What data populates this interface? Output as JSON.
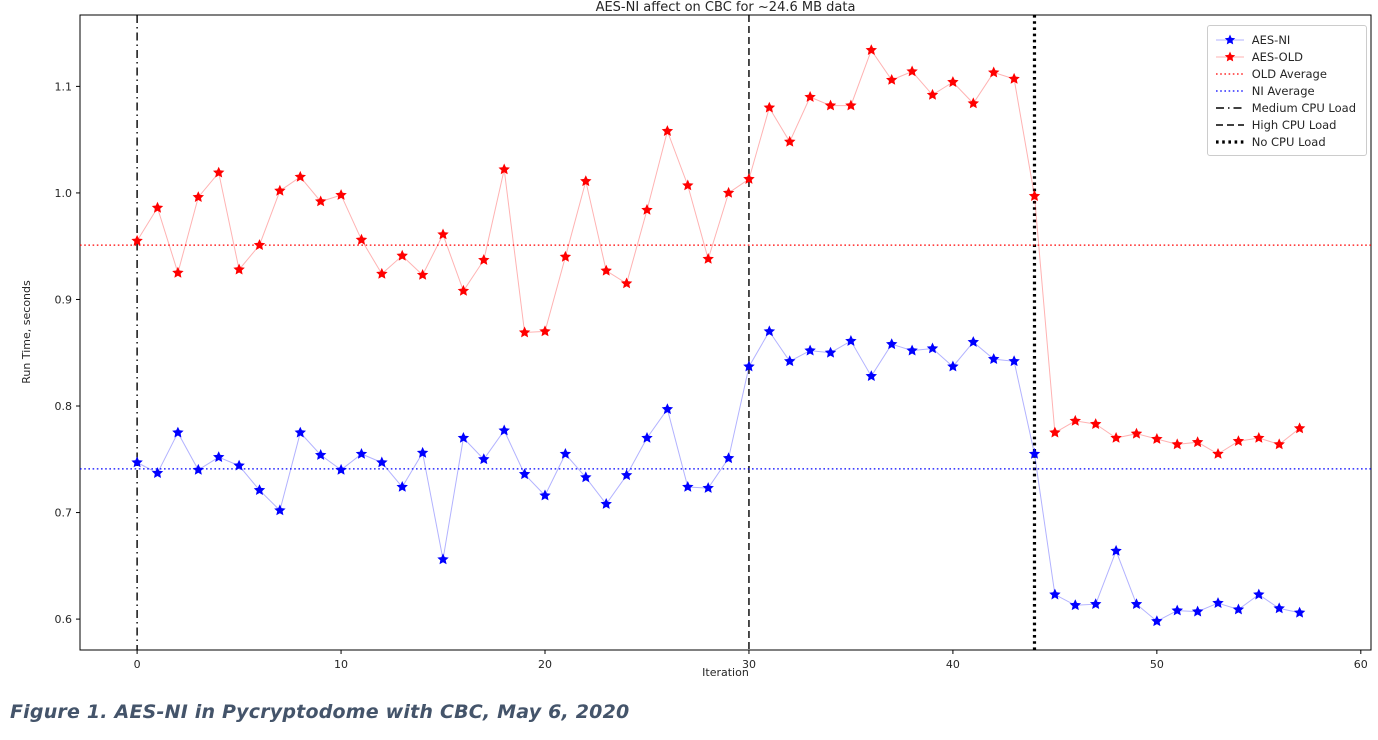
{
  "caption": "Figure 1. AES-NI in Pycryptodome with CBC, May 6, 2020",
  "chart_data": {
    "type": "line",
    "title": "AES-NI affect on CBC for ~24.6 MB data",
    "xlabel": "Iteration",
    "ylabel": "Run Time, seconds",
    "grid": false,
    "legend_position": "upper right",
    "xlim": [
      -2.8,
      60.5
    ],
    "ylim": [
      0.571,
      1.167
    ],
    "x_ticks": [
      0,
      10,
      20,
      30,
      40,
      50,
      60
    ],
    "y_ticks": [
      0.6,
      0.7,
      0.8,
      0.9,
      1.0,
      1.1
    ],
    "x": [
      0,
      1,
      2,
      3,
      4,
      5,
      6,
      7,
      8,
      9,
      10,
      11,
      12,
      13,
      14,
      15,
      16,
      17,
      18,
      19,
      20,
      21,
      22,
      23,
      24,
      25,
      26,
      27,
      28,
      29,
      30,
      31,
      32,
      33,
      34,
      35,
      36,
      37,
      38,
      39,
      40,
      41,
      42,
      43,
      44,
      45,
      46,
      47,
      48,
      49,
      50,
      51,
      52,
      53,
      54,
      55,
      56,
      57
    ],
    "series": [
      {
        "name": "AES-NI",
        "color": "#0000ff",
        "marker": "star",
        "values": [
          0.747,
          0.737,
          0.775,
          0.74,
          0.752,
          0.744,
          0.721,
          0.702,
          0.775,
          0.754,
          0.74,
          0.755,
          0.747,
          0.724,
          0.756,
          0.656,
          0.77,
          0.75,
          0.777,
          0.736,
          0.716,
          0.755,
          0.733,
          0.708,
          0.735,
          0.77,
          0.797,
          0.724,
          0.723,
          0.751,
          0.837,
          0.87,
          0.842,
          0.852,
          0.85,
          0.861,
          0.828,
          0.858,
          0.852,
          0.854,
          0.837,
          0.86,
          0.844,
          0.842,
          0.755,
          0.623,
          0.613,
          0.614,
          0.664,
          0.614,
          0.598,
          0.608,
          0.607,
          0.615,
          0.609,
          0.623,
          0.61,
          0.606
        ]
      },
      {
        "name": "AES-OLD",
        "color": "#ff0000",
        "marker": "star",
        "values": [
          0.955,
          0.986,
          0.925,
          0.996,
          1.019,
          0.928,
          0.951,
          1.002,
          1.015,
          0.992,
          0.998,
          0.956,
          0.924,
          0.941,
          0.923,
          0.961,
          0.908,
          0.937,
          1.022,
          0.869,
          0.87,
          0.94,
          1.011,
          0.927,
          0.915,
          0.984,
          1.058,
          1.007,
          0.938,
          1.0,
          1.013,
          1.08,
          1.048,
          1.09,
          1.082,
          1.082,
          1.134,
          1.106,
          1.114,
          1.092,
          1.104,
          1.084,
          1.113,
          1.107,
          0.997,
          0.775,
          0.786,
          0.783,
          0.77,
          0.774,
          0.769,
          0.764,
          0.766,
          0.755,
          0.767,
          0.77,
          0.764,
          0.779
        ]
      }
    ],
    "reference_lines": {
      "horizontal": [
        {
          "name": "OLD Average",
          "value": 0.951,
          "color": "#ff0000",
          "style": "dotted"
        },
        {
          "name": "NI Average",
          "value": 0.741,
          "color": "#0000ff",
          "style": "dotted"
        }
      ],
      "vertical": [
        {
          "name": "Medium CPU Load",
          "value": 0,
          "color": "#000000",
          "style": "dashdot"
        },
        {
          "name": "High CPU Load",
          "value": 30,
          "color": "#000000",
          "style": "dashed"
        },
        {
          "name": "No CPU Load",
          "value": 44,
          "color": "#000000",
          "style": "dotted-bold"
        }
      ]
    },
    "legend": [
      {
        "label": "AES-NI",
        "type": "marker-line",
        "color": "#0000ff"
      },
      {
        "label": "AES-OLD",
        "type": "marker-line",
        "color": "#ff0000"
      },
      {
        "label": "OLD Average",
        "type": "dotted",
        "color": "#ff0000"
      },
      {
        "label": "NI Average",
        "type": "dotted",
        "color": "#0000ff"
      },
      {
        "label": "Medium CPU Load",
        "type": "dashdot",
        "color": "#000000"
      },
      {
        "label": "High CPU Load",
        "type": "dashed",
        "color": "#000000"
      },
      {
        "label": "No CPU Load",
        "type": "dotted-bold",
        "color": "#000000"
      }
    ]
  }
}
